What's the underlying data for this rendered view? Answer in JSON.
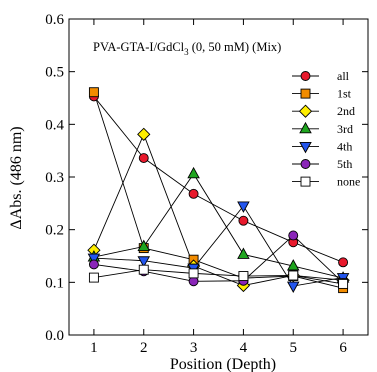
{
  "chart_data": {
    "type": "line",
    "annotation": "PVA-GTA-I/GdCl",
    "annotation_sub": "3",
    "annotation_tail": " (0, 50 mM) (Mix)",
    "xlabel": "Position (Depth)",
    "ylabel": "ΔAbs. (486 nm)",
    "xlim": [
      0.5,
      6.5
    ],
    "ylim": [
      0,
      0.6
    ],
    "x": [
      1,
      2,
      3,
      4,
      5,
      6
    ],
    "xticks": [
      "1",
      "2",
      "3",
      "4",
      "5",
      "6"
    ],
    "yticks": [
      "0.0",
      "0.1",
      "0.2",
      "0.3",
      "0.4",
      "0.5",
      "0.6"
    ],
    "grid": false,
    "legend_position": "top-right",
    "series": [
      {
        "name": "all",
        "marker": "circle",
        "color": "#e8192c",
        "values": [
          0.453,
          0.336,
          0.268,
          0.217,
          0.176,
          0.138
        ]
      },
      {
        "name": "1st",
        "marker": "square",
        "color": "#f28c00",
        "values": [
          0.461,
          0.165,
          0.143,
          0.108,
          0.112,
          0.089
        ]
      },
      {
        "name": "2nd",
        "marker": "diamond",
        "color": "#ffee00",
        "values": [
          0.161,
          0.381,
          0.131,
          0.094,
          0.113,
          0.104
        ]
      },
      {
        "name": "3rd",
        "marker": "triangle-up",
        "color": "#1fa51f",
        "values": [
          0.148,
          0.168,
          0.306,
          0.153,
          0.131,
          0.108
        ]
      },
      {
        "name": "4th",
        "marker": "triangle-down",
        "color": "#2255ee",
        "values": [
          0.146,
          0.141,
          0.127,
          0.245,
          0.093,
          0.109
        ]
      },
      {
        "name": "5th",
        "marker": "circle",
        "color": "#8a25b8",
        "values": [
          0.134,
          0.121,
          0.102,
          0.103,
          0.189,
          0.099
        ]
      },
      {
        "name": "none",
        "marker": "square",
        "color": "#ffffff",
        "values": [
          0.109,
          0.124,
          0.117,
          0.112,
          0.113,
          0.097
        ]
      }
    ]
  }
}
